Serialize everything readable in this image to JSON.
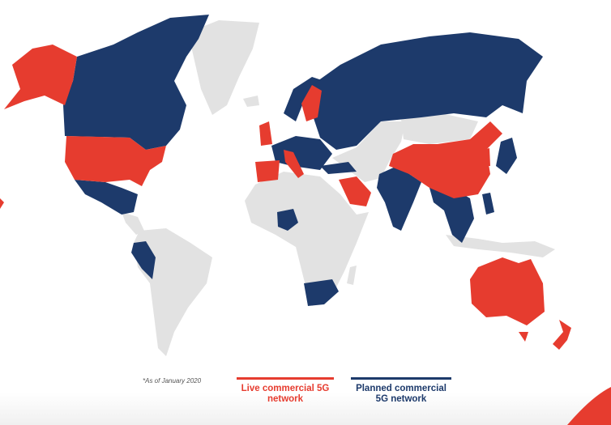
{
  "legend": {
    "note": "*As of January 2020",
    "items": [
      {
        "label": "Live commercial 5G network",
        "color": "#e63c2f"
      },
      {
        "label": "Planned commercial 5G network",
        "color": "#1d3a6b"
      }
    ]
  },
  "colors": {
    "live": "#e63c2f",
    "planned": "#1d3a6b",
    "none": "#e2e2e2"
  },
  "countries": {
    "live": [
      "Alaska (USA)",
      "United States",
      "United Kingdom",
      "Spain",
      "Italy",
      "Sweden",
      "Finland",
      "Switzerland",
      "Saudi Arabia",
      "China",
      "South Korea",
      "Australia",
      "New Zealand"
    ],
    "planned": [
      "Canada",
      "Mexico",
      "Peru",
      "Norway",
      "France",
      "Germany",
      "Turkey",
      "Russia",
      "Nigeria",
      "South Africa",
      "India",
      "Pakistan",
      "Southeast Asia",
      "Japan",
      "Philippines"
    ]
  }
}
